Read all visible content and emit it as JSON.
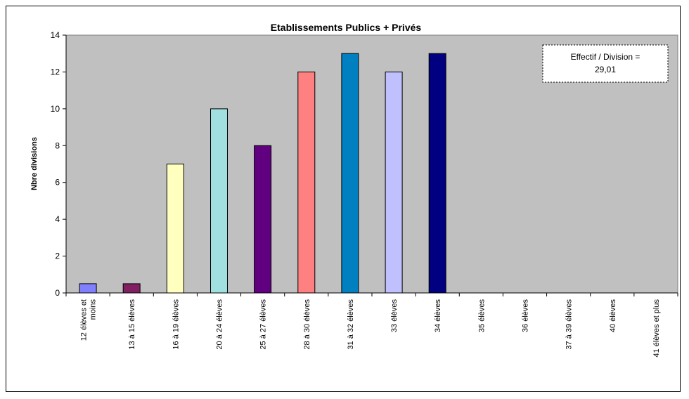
{
  "chart_data": {
    "type": "bar",
    "title": "Etablissements Publics + Privés",
    "ylabel": "Nbre divisions",
    "xlabel": "",
    "ylim": [
      0,
      14
    ],
    "yticks": [
      0,
      2,
      4,
      6,
      8,
      10,
      12,
      14
    ],
    "grid": false,
    "legend": "none",
    "plot_background": "#C0C0C0",
    "categories": [
      [
        "12 élèves et",
        "moins"
      ],
      [
        "13 à 15 élèves"
      ],
      [
        "16 à 19 élèves"
      ],
      [
        "20 à 24 élèves"
      ],
      [
        "25 à 27 élèves"
      ],
      [
        "28 à 30 élèves"
      ],
      [
        "31 à 32 élèves"
      ],
      [
        "33 élèves"
      ],
      [
        "34 élèves"
      ],
      [
        "35 élèves"
      ],
      [
        "36 élèves"
      ],
      [
        "37 à 39 élèves"
      ],
      [
        "40 élèves"
      ],
      [
        "41 élèves et plus"
      ]
    ],
    "values": [
      0.5,
      0.5,
      7,
      10,
      8,
      12,
      13,
      12,
      13,
      0,
      0,
      0,
      0,
      0
    ],
    "colors": [
      "#8080FF",
      "#802060",
      "#FFFFC0",
      "#A0E0E0",
      "#600080",
      "#FF8080",
      "#0080C0",
      "#C0C0FF",
      "#000080",
      "#C0C0C0",
      "#C0C0C0",
      "#C0C0C0",
      "#C0C0C0",
      "#C0C0C0"
    ],
    "annotation": [
      "Effectif / Division =",
      "29,01"
    ]
  }
}
